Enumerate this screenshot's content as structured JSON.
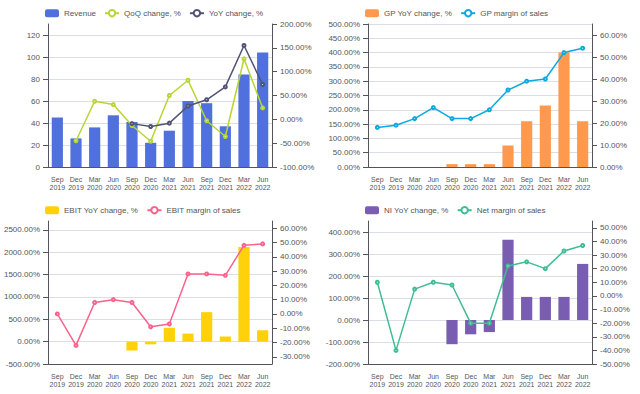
{
  "chart_data": [
    {
      "type": "bar",
      "categories": [
        "Sep\n2019",
        "Dec\n2019",
        "Mar\n2020",
        "Jun\n2020",
        "Sep\n2020",
        "Dec\n2020",
        "Mar\n2021",
        "Jun\n2021",
        "Sep\n2021",
        "Dec\n2021",
        "Mar\n2022",
        "Jun\n2022"
      ],
      "series": [
        {
          "name": "Revenue",
          "values": [
            45,
            26,
            36,
            47,
            41,
            22,
            33,
            60,
            58,
            37,
            84,
            104
          ]
        },
        {
          "name": "QoQ change, %",
          "type": "line",
          "axis": "y2",
          "values": [
            null,
            -45,
            38,
            31,
            -13,
            -46,
            50,
            82,
            -3,
            -36,
            127,
            24
          ]
        },
        {
          "name": "YoY change, %",
          "type": "line",
          "axis": "y2",
          "values": [
            null,
            null,
            null,
            null,
            -9,
            -15,
            -8,
            28,
            41,
            68,
            155,
            73
          ]
        }
      ],
      "ylim": [
        0,
        130
      ],
      "yticks": [
        0,
        20,
        40,
        60,
        80,
        100,
        120
      ],
      "y2lim": [
        -100,
        200
      ],
      "y2ticks": [
        {
          "value": -100,
          "label": "-100.00%"
        },
        {
          "value": -50,
          "label": "-50.00%"
        },
        {
          "value": 0,
          "label": "0.00%"
        },
        {
          "value": 50,
          "label": "50.00%"
        },
        {
          "value": 100,
          "label": "100.00%"
        },
        {
          "value": 150,
          "label": "150.00%"
        },
        {
          "value": 200,
          "label": "200.00%"
        }
      ],
      "grid": true,
      "legend": "top"
    },
    {
      "type": "bar",
      "categories": [
        "Sep\n2019",
        "Dec\n2019",
        "Mar\n2020",
        "Jun\n2020",
        "Sep\n2020",
        "Dec\n2020",
        "Mar\n2021",
        "Jun\n2021",
        "Sep\n2021",
        "Dec\n2021",
        "Mar\n2022",
        "Jun\n2022"
      ],
      "series": [
        {
          "name": "GP YoY change, %",
          "values": [
            null,
            null,
            null,
            null,
            10,
            10,
            10,
            75,
            160,
            215,
            400,
            160
          ]
        },
        {
          "name": "GP margin of sales",
          "type": "line",
          "axis": "y2",
          "values": [
            18,
            19,
            22,
            27,
            22,
            22,
            26,
            35,
            39,
            40,
            52,
            54
          ]
        }
      ],
      "ylim": [
        0,
        500
      ],
      "yticks": [
        {
          "value": 0,
          "label": "0.00%"
        },
        {
          "value": 50,
          "label": "50.00%"
        },
        {
          "value": 100,
          "label": "100.00%"
        },
        {
          "value": 150,
          "label": "150.00%"
        },
        {
          "value": 200,
          "label": "200.00%"
        },
        {
          "value": 250,
          "label": "250.00%"
        },
        {
          "value": 300,
          "label": "300.00%"
        },
        {
          "value": 350,
          "label": "350.00%"
        },
        {
          "value": 400,
          "label": "400.00%"
        },
        {
          "value": 450,
          "label": "450.00%"
        },
        {
          "value": 500,
          "label": "500.00%"
        }
      ],
      "y2lim": [
        0,
        65
      ],
      "y2ticks": [
        {
          "value": 0,
          "label": "0.00%"
        },
        {
          "value": 10,
          "label": "10.00%"
        },
        {
          "value": 20,
          "label": "20.00%"
        },
        {
          "value": 30,
          "label": "30.00%"
        },
        {
          "value": 40,
          "label": "40.00%"
        },
        {
          "value": 50,
          "label": "50.00%"
        },
        {
          "value": 60,
          "label": "60.00%"
        }
      ],
      "grid": true,
      "legend": "top"
    },
    {
      "type": "bar",
      "categories": [
        "Sep\n2019",
        "Dec\n2019",
        "Mar\n2020",
        "Jun\n2020",
        "Sep\n2020",
        "Dec\n2020",
        "Mar\n2021",
        "Jun\n2021",
        "Sep\n2021",
        "Dec\n2021",
        "Mar\n2022",
        "Jun\n2022"
      ],
      "series": [
        {
          "name": "EBIT YoY change, %",
          "values": [
            null,
            null,
            null,
            null,
            -200,
            -60,
            310,
            180,
            660,
            115,
            2120,
            255
          ]
        },
        {
          "name": "EBIT margin of sales",
          "type": "line",
          "axis": "y2",
          "values": [
            0,
            -22,
            8,
            10,
            8,
            -9,
            -7,
            28,
            28,
            27,
            48,
            49
          ]
        }
      ],
      "ylim": [
        -500,
        2700
      ],
      "yticks": [
        {
          "value": -500,
          "label": "-500.00%"
        },
        {
          "value": 0,
          "label": "0.00%"
        },
        {
          "value": 500,
          "label": "500.00%"
        },
        {
          "value": 1000,
          "label": "1000.00%"
        },
        {
          "value": 1500,
          "label": "1500.00%"
        },
        {
          "value": 2000,
          "label": "2000.00%"
        },
        {
          "value": 2500,
          "label": "2500.00%"
        }
      ],
      "y2lim": [
        -35,
        65
      ],
      "y2ticks": [
        {
          "value": -30,
          "label": "-30.00%"
        },
        {
          "value": -20,
          "label": "-20.00%"
        },
        {
          "value": -10,
          "label": "-10.00%"
        },
        {
          "value": 0,
          "label": "0.00%"
        },
        {
          "value": 10,
          "label": "10.00%"
        },
        {
          "value": 20,
          "label": "20.00%"
        },
        {
          "value": 30,
          "label": "30.00%"
        },
        {
          "value": 40,
          "label": "40.00%"
        },
        {
          "value": 50,
          "label": "50.00%"
        },
        {
          "value": 60,
          "label": "60.00%"
        }
      ],
      "grid": true,
      "legend": "top"
    },
    {
      "type": "bar",
      "categories": [
        "Sep\n2019",
        "Dec\n2019",
        "Mar\n2020",
        "Jun\n2020",
        "Sep\n2020",
        "Dec\n2020",
        "Mar\n2021",
        "Jun\n2021",
        "Sep\n2021",
        "Dec\n2021",
        "Mar\n2022",
        "Jun\n2022"
      ],
      "series": [
        {
          "name": "NI YoY change, %",
          "values": [
            null,
            null,
            null,
            null,
            -110,
            -65,
            -55,
            365,
            105,
            105,
            105,
            255
          ]
        },
        {
          "name": "Net margin of sales",
          "type": "line",
          "axis": "y2",
          "values": [
            10,
            -40,
            5,
            10,
            8,
            -20,
            -20,
            22,
            25,
            20,
            33,
            37
          ]
        }
      ],
      "ylim": [
        -200,
        450
      ],
      "yticks": [
        {
          "value": -200,
          "label": "-200.00%"
        },
        {
          "value": -100,
          "label": "-100.00%"
        },
        {
          "value": 0,
          "label": "0.00%"
        },
        {
          "value": 100,
          "label": "100.00%"
        },
        {
          "value": 200,
          "label": "200.00%"
        },
        {
          "value": 300,
          "label": "300.00%"
        },
        {
          "value": 400,
          "label": "400.00%"
        }
      ],
      "y2lim": [
        -50,
        55
      ],
      "y2ticks": [
        {
          "value": -50,
          "label": "-50.00%"
        },
        {
          "value": -40,
          "label": "-40.00%"
        },
        {
          "value": -30,
          "label": "-30.00%"
        },
        {
          "value": -20,
          "label": "-20.00%"
        },
        {
          "value": -10,
          "label": "-10.00%"
        },
        {
          "value": 0,
          "label": "0.00%"
        },
        {
          "value": 10,
          "label": "10.00%"
        },
        {
          "value": 20,
          "label": "20.00%"
        },
        {
          "value": 30,
          "label": "30.00%"
        },
        {
          "value": 40,
          "label": "40.00%"
        },
        {
          "value": 50,
          "label": "50.00%"
        }
      ],
      "grid": true,
      "legend": "top"
    }
  ]
}
